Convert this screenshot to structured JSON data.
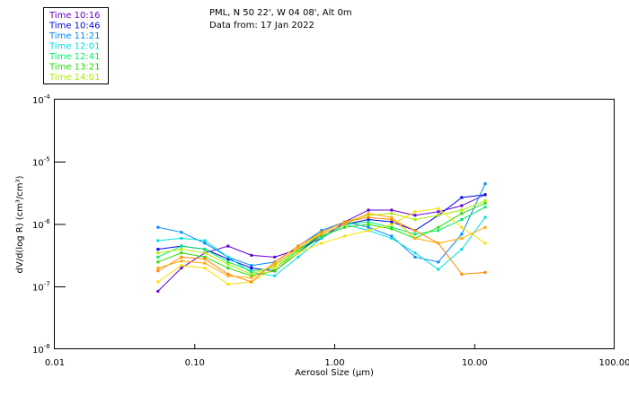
{
  "chart_data": {
    "type": "line",
    "title": "PML, N 50 22', W 04 08', Alt 0m",
    "subtitle": "Data from: 17 Jan 2022",
    "xlabel": "Aerosol Size (µm)",
    "ylabel": "dV/d(log R) (cm³/cm³)",
    "xscale": "log",
    "yscale": "log",
    "xlim": [
      0.01,
      100
    ],
    "ylim": [
      1e-08,
      0.0001
    ],
    "xticks": [
      {
        "value": 0.01,
        "label": "0.01"
      },
      {
        "value": 0.1,
        "label": "0.10"
      },
      {
        "value": 1,
        "label": "1.00"
      },
      {
        "value": 10,
        "label": "10.00"
      },
      {
        "value": 100,
        "label": "100.00"
      }
    ],
    "yticks": [
      {
        "value": 0.0001,
        "base": "10",
        "exp": "-4"
      },
      {
        "value": 1e-05,
        "base": "10",
        "exp": "-5"
      },
      {
        "value": 1e-06,
        "base": "10",
        "exp": "-6"
      },
      {
        "value": 1e-07,
        "base": "10",
        "exp": "-7"
      },
      {
        "value": 1e-08,
        "base": "10",
        "exp": "-8"
      }
    ],
    "legend_position": "top-left-outside",
    "x": [
      0.0546,
      0.0802,
      0.118,
      0.173,
      0.254,
      0.373,
      0.548,
      0.805,
      1.18,
      1.74,
      2.55,
      3.75,
      5.5,
      8.08,
      11.9
    ],
    "series": [
      {
        "name": "Time 10:16",
        "color": "#6600cc",
        "values": [
          8.5e-08,
          2e-07,
          3.5e-07,
          4.5e-07,
          3.2e-07,
          3e-07,
          4e-07,
          6e-07,
          1.1e-06,
          1.7e-06,
          1.7e-06,
          1.4e-06,
          1.6e-06,
          2e-06,
          3e-06
        ]
      },
      {
        "name": "Time 10:46",
        "color": "#0000ee",
        "values": [
          4e-07,
          4.5e-07,
          4e-07,
          2.8e-07,
          2e-07,
          1.8e-07,
          3.5e-07,
          7e-07,
          1e-06,
          1.2e-06,
          1.1e-06,
          8e-07,
          1.4e-06,
          2.7e-06,
          3e-06
        ]
      },
      {
        "name": "Time 11:21",
        "color": "#0088ff",
        "values": [
          9e-07,
          7.5e-07,
          5e-07,
          3e-07,
          2.2e-07,
          2.5e-07,
          4.5e-07,
          8e-07,
          1.1e-06,
          9e-07,
          6.5e-07,
          3e-07,
          2.5e-07,
          7e-07,
          4.5e-06
        ]
      },
      {
        "name": "Time 12:01",
        "color": "#00dddd",
        "values": [
          5.5e-07,
          6e-07,
          5.5e-07,
          3e-07,
          1.7e-07,
          1.5e-07,
          3e-07,
          6e-07,
          1e-06,
          8e-07,
          6e-07,
          3.5e-07,
          1.9e-07,
          4e-07,
          1.3e-06
        ]
      },
      {
        "name": "Time 12:41",
        "color": "#00ee66",
        "values": [
          3e-07,
          4.5e-07,
          4e-07,
          2.5e-07,
          1.8e-07,
          2e-07,
          3.8e-07,
          7e-07,
          1e-06,
          1.1e-06,
          9e-07,
          7e-07,
          8e-07,
          1.2e-06,
          1.9e-06
        ]
      },
      {
        "name": "Time 13:21",
        "color": "#22dd00",
        "values": [
          2.5e-07,
          3.5e-07,
          3e-07,
          2e-07,
          1.5e-07,
          1.8e-07,
          3.5e-07,
          6.5e-07,
          9e-07,
          1e-06,
          8.5e-07,
          6e-07,
          9e-07,
          1.5e-06,
          2.2e-06
        ]
      },
      {
        "name": "Time 14:01",
        "color": "#aaee00",
        "values": [
          3.5e-07,
          4e-07,
          3.5e-07,
          2.3e-07,
          1.6e-07,
          2.2e-07,
          4e-07,
          7.5e-07,
          1.1e-06,
          1.4e-06,
          1.5e-06,
          1.2e-06,
          1.4e-06,
          1.7e-06,
          2.4e-06
        ]
      },
      {
        "name": "",
        "color": "#ffdd00",
        "values": [
          1.2e-07,
          2.2e-07,
          2e-07,
          1.1e-07,
          1.2e-07,
          2e-07,
          3.5e-07,
          5e-07,
          6.5e-07,
          8e-07,
          1e-06,
          1.6e-06,
          1.8e-06,
          9e-07,
          5e-07
        ]
      },
      {
        "name": "",
        "color": "#ff8800",
        "values": [
          1.8e-07,
          3e-07,
          2.8e-07,
          1.6e-07,
          1.2e-07,
          2.5e-07,
          4.5e-07,
          7.5e-07,
          1.1e-06,
          1.3e-06,
          1.2e-06,
          8e-07,
          5e-07,
          1.6e-07,
          1.7e-07
        ]
      },
      {
        "name": "",
        "color": "#ffaa00",
        "values": [
          2e-07,
          2.6e-07,
          2.4e-07,
          1.5e-07,
          1.4e-07,
          2.3e-07,
          4.2e-07,
          7e-07,
          1e-06,
          1.5e-06,
          1.3e-06,
          6e-07,
          5e-07,
          6e-07,
          9e-07
        ]
      }
    ]
  }
}
